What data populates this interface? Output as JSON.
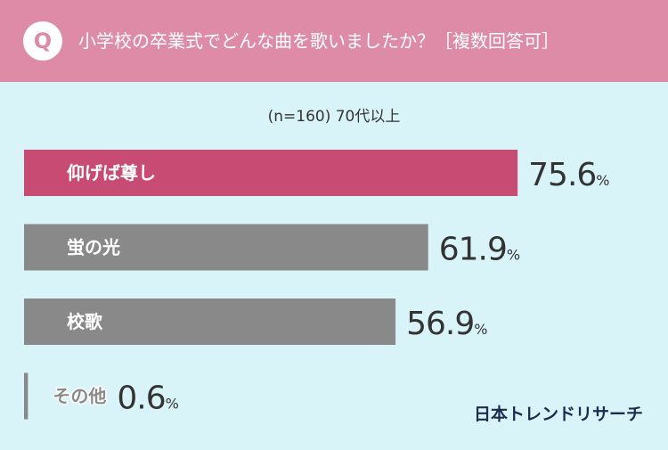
{
  "badge": "Q",
  "brand": "日本トレンドリサーチ",
  "chart_data": {
    "type": "bar",
    "title": "小学校の卒業式でどんな曲を歌いましたか？［複数回答可］",
    "subtitle": "(n=160) 70代以上",
    "categories": [
      "仰げば尊し",
      "蛍の光",
      "校歌",
      "その他"
    ],
    "values": [
      75.6,
      61.9,
      56.9,
      0.6
    ],
    "value_labels": [
      "75.6%",
      "61.9%",
      "56.9%",
      "0.6%"
    ],
    "colors": [
      "#c84b73",
      "#898989",
      "#898989",
      "#898989"
    ]
  }
}
